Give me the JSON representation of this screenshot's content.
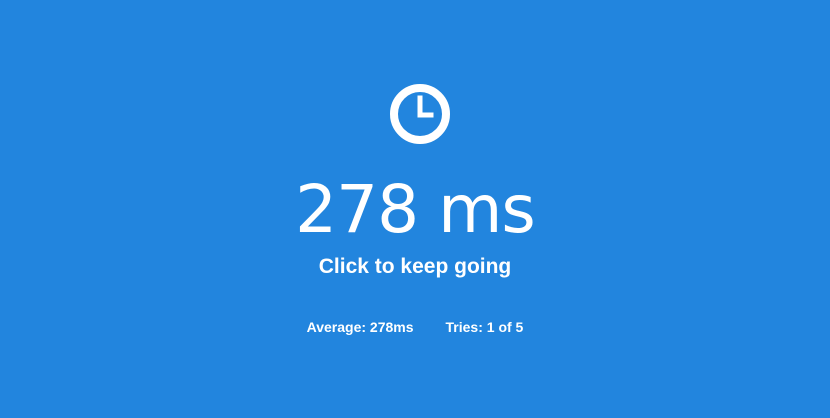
{
  "icon": "clock-icon",
  "result": "278 ms",
  "subtitle": "Click to keep going",
  "stats": {
    "average": "Average: 278ms",
    "tries": "Tries: 1 of 5"
  },
  "colors": {
    "background": "#2285de",
    "text": "#ffffff"
  }
}
